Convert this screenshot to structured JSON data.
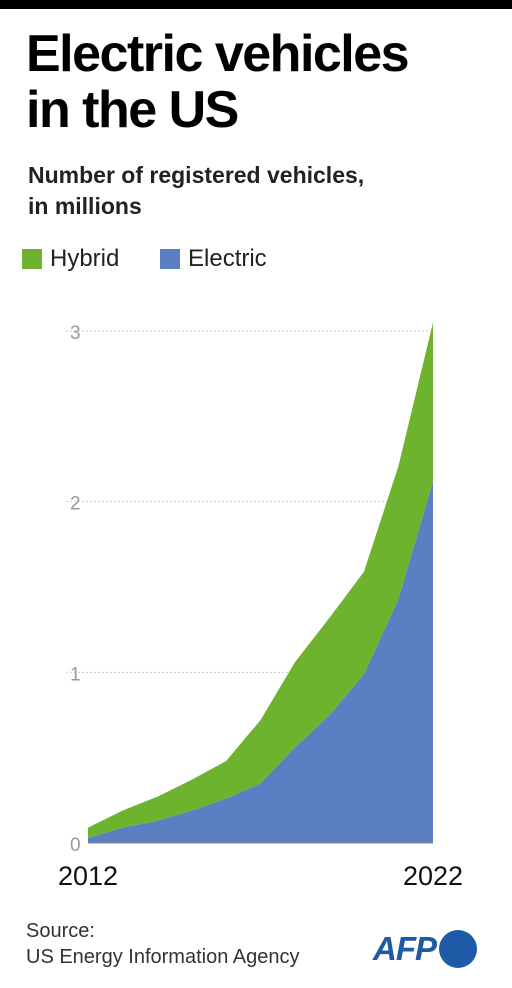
{
  "title": "Electric vehicles\nin the US",
  "subtitle": "Number of registered vehicles,\nin millions",
  "source": {
    "line1": "Source:",
    "line2": "US Energy Information  Agency"
  },
  "logo": {
    "text": "AFP",
    "color": "#1f5aa6"
  },
  "colors": {
    "hybrid": "#6db32e",
    "electric": "#5b7fc2",
    "gridline": "#cccccc",
    "axis_text": "#999999"
  },
  "chart_data": {
    "type": "area",
    "stacked": true,
    "title": "Electric vehicles in the US",
    "subtitle": "Number of registered vehicles, in millions",
    "x": [
      2012,
      2013,
      2014,
      2015,
      2016,
      2017,
      2018,
      2019,
      2020,
      2021,
      2022
    ],
    "x_tick_labels": [
      "2012",
      "2022"
    ],
    "y_ticks": [
      0,
      1,
      2,
      3
    ],
    "ylim": [
      0,
      3.1
    ],
    "grid": true,
    "legend": "top-left",
    "series": [
      {
        "name": "Electric",
        "color": "#5b7fc2",
        "values": [
          0.03,
          0.09,
          0.13,
          0.19,
          0.26,
          0.35,
          0.56,
          0.75,
          0.99,
          1.43,
          2.12
        ]
      },
      {
        "name": "Hybrid",
        "color": "#6db32e",
        "values": [
          0.06,
          0.1,
          0.14,
          0.18,
          0.22,
          0.37,
          0.5,
          0.57,
          0.6,
          0.78,
          0.93
        ]
      }
    ],
    "legend_order": [
      "Hybrid",
      "Electric"
    ]
  }
}
